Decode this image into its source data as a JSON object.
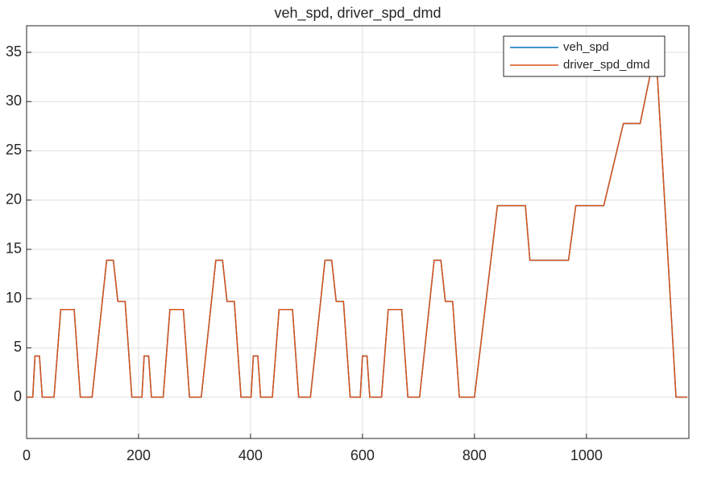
{
  "chart_data": {
    "type": "line",
    "title": "veh_spd, driver_spd_dmd",
    "x": [
      0,
      11,
      15,
      23,
      28,
      49,
      61,
      85,
      96,
      117,
      143,
      155,
      163,
      176,
      188,
      195,
      206,
      210,
      218,
      223,
      244,
      256,
      280,
      291,
      312,
      338,
      350,
      358,
      371,
      383,
      390,
      401,
      405,
      413,
      418,
      439,
      451,
      475,
      486,
      507,
      533,
      545,
      553,
      566,
      578,
      585,
      596,
      600,
      608,
      613,
      634,
      646,
      670,
      681,
      702,
      728,
      740,
      748,
      761,
      773,
      800,
      841,
      891,
      899,
      968,
      981,
      1031,
      1066,
      1096,
      1116,
      1126,
      1160,
      1180
    ],
    "series": [
      {
        "name": "veh_spd",
        "color": "#0072BD",
        "values": [
          0,
          0,
          4.17,
          4.17,
          0,
          0,
          8.89,
          8.89,
          0,
          0,
          13.89,
          13.89,
          9.72,
          9.72,
          0,
          0,
          0,
          4.17,
          4.17,
          0,
          0,
          8.89,
          8.89,
          0,
          0,
          13.89,
          13.89,
          9.72,
          9.72,
          0,
          0,
          0,
          4.17,
          4.17,
          0,
          0,
          8.89,
          8.89,
          0,
          0,
          13.89,
          13.89,
          9.72,
          9.72,
          0,
          0,
          0,
          4.17,
          4.17,
          0,
          0,
          8.89,
          8.89,
          0,
          0,
          13.89,
          13.89,
          9.72,
          9.72,
          0,
          0,
          19.44,
          19.44,
          13.89,
          13.89,
          19.44,
          19.44,
          27.78,
          27.78,
          33.33,
          33.33,
          0,
          0
        ]
      },
      {
        "name": "driver_spd_dmd",
        "color": "#D95319",
        "values": [
          0,
          0,
          4.17,
          4.17,
          0,
          0,
          8.89,
          8.89,
          0,
          0,
          13.89,
          13.89,
          9.72,
          9.72,
          0,
          0,
          0,
          4.17,
          4.17,
          0,
          0,
          8.89,
          8.89,
          0,
          0,
          13.89,
          13.89,
          9.72,
          9.72,
          0,
          0,
          0,
          4.17,
          4.17,
          0,
          0,
          8.89,
          8.89,
          0,
          0,
          13.89,
          13.89,
          9.72,
          9.72,
          0,
          0,
          0,
          4.17,
          4.17,
          0,
          0,
          8.89,
          8.89,
          0,
          0,
          13.89,
          13.89,
          9.72,
          9.72,
          0,
          0,
          19.44,
          19.44,
          13.89,
          13.89,
          19.44,
          19.44,
          27.78,
          27.78,
          33.33,
          33.33,
          0,
          0
        ]
      }
    ],
    "xlim": [
      0,
      1183
    ],
    "ylim": [
      -4.2,
      37.7
    ],
    "xticks": [
      0,
      200,
      400,
      600,
      800,
      1000
    ],
    "yticks": [
      0,
      5,
      10,
      15,
      20,
      25,
      30,
      35
    ],
    "grid": true,
    "legend": "top-right"
  }
}
